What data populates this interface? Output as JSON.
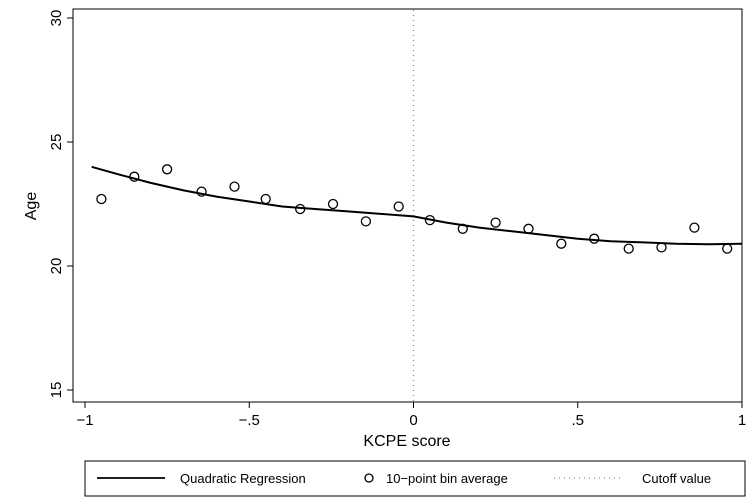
{
  "chart_data": {
    "type": "scatter",
    "xlabel": "KCPE score",
    "ylabel": "Age",
    "xlim": [
      -1,
      1
    ],
    "ylim": [
      15,
      30
    ],
    "xticks": [
      {
        "value": -1,
        "label": "−1"
      },
      {
        "value": -0.5,
        "label": "−.5"
      },
      {
        "value": 0,
        "label": "0"
      },
      {
        "value": 0.5,
        "label": ".5"
      },
      {
        "value": 1,
        "label": "1"
      }
    ],
    "yticks": [
      {
        "value": 15,
        "label": "15"
      },
      {
        "value": 20,
        "label": "20"
      },
      {
        "value": 25,
        "label": "25"
      },
      {
        "value": 30,
        "label": "30"
      }
    ],
    "cutoff_x": 0,
    "bin_points": {
      "x": [
        -0.95,
        -0.85,
        -0.75,
        -0.645,
        -0.545,
        -0.45,
        -0.345,
        -0.245,
        -0.145,
        -0.045,
        0.05,
        0.15,
        0.25,
        0.35,
        0.45,
        0.55,
        0.655,
        0.755,
        0.855,
        0.955
      ],
      "y": [
        22.7,
        23.6,
        23.9,
        23.0,
        23.2,
        22.7,
        22.3,
        22.5,
        21.8,
        22.4,
        21.85,
        21.5,
        21.75,
        21.5,
        20.9,
        21.1,
        20.7,
        20.75,
        21.55,
        20.7
      ]
    },
    "regression_left": {
      "x": [
        -0.98,
        -0.9,
        -0.8,
        -0.7,
        -0.6,
        -0.5,
        -0.4,
        -0.3,
        -0.2,
        -0.1,
        0
      ],
      "y": [
        24.0,
        23.7,
        23.35,
        23.05,
        22.8,
        22.6,
        22.4,
        22.3,
        22.2,
        22.1,
        22.0
      ]
    },
    "regression_right": {
      "x": [
        0,
        0.1,
        0.2,
        0.3,
        0.4,
        0.5,
        0.6,
        0.7,
        0.8,
        0.9,
        1.0
      ],
      "y": [
        22.0,
        21.75,
        21.55,
        21.4,
        21.25,
        21.1,
        21.0,
        20.95,
        20.9,
        20.88,
        20.9
      ]
    },
    "legend": {
      "position": "bottom",
      "items": [
        {
          "name": "Quadratic Regression",
          "symbol": "line"
        },
        {
          "name": "10−point bin average",
          "symbol": "circle"
        },
        {
          "name": "Cutoff value",
          "symbol": "dotted"
        }
      ]
    },
    "colors": {
      "line": "#000000",
      "cutoff": "#8a8aa0",
      "frame": "#000000"
    }
  }
}
